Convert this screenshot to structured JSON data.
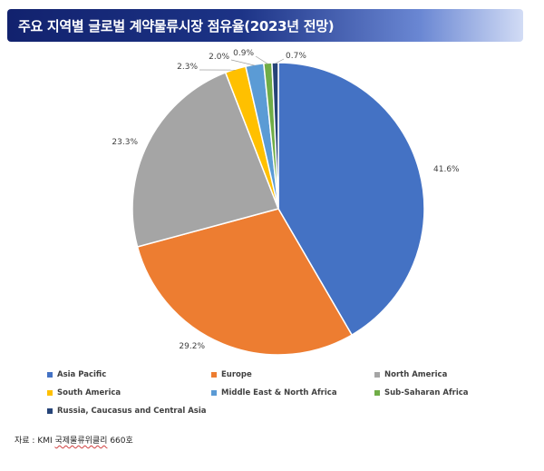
{
  "title": "주요 지역별 글로벌 계약물류시장 점유율(2023년 전망)",
  "chart_data": {
    "type": "pie",
    "unit": "%",
    "categories": [
      "Asia Pacific",
      "Europe",
      "North America",
      "South America",
      "Middle East & North Africa",
      "Sub-Saharan Africa",
      "Russia, Caucasus and Central Asia"
    ],
    "values": [
      41.6,
      29.2,
      23.3,
      2.3,
      2.0,
      0.9,
      0.7
    ],
    "labels": [
      "41.6%",
      "29.2%",
      "23.3%",
      "2.3%",
      "2.0%",
      "0.9%",
      "0.7%"
    ],
    "colors": [
      "#4472c4",
      "#ed7d31",
      "#a5a5a5",
      "#ffc000",
      "#5b9bd5",
      "#70ad47",
      "#264478"
    ],
    "start": "12 o'clock",
    "direction": "clockwise",
    "legend_position": "bottom"
  },
  "source": {
    "prefix": "자료 : KMI ",
    "publication": "국제물류위클리",
    "issue": " 660호"
  }
}
